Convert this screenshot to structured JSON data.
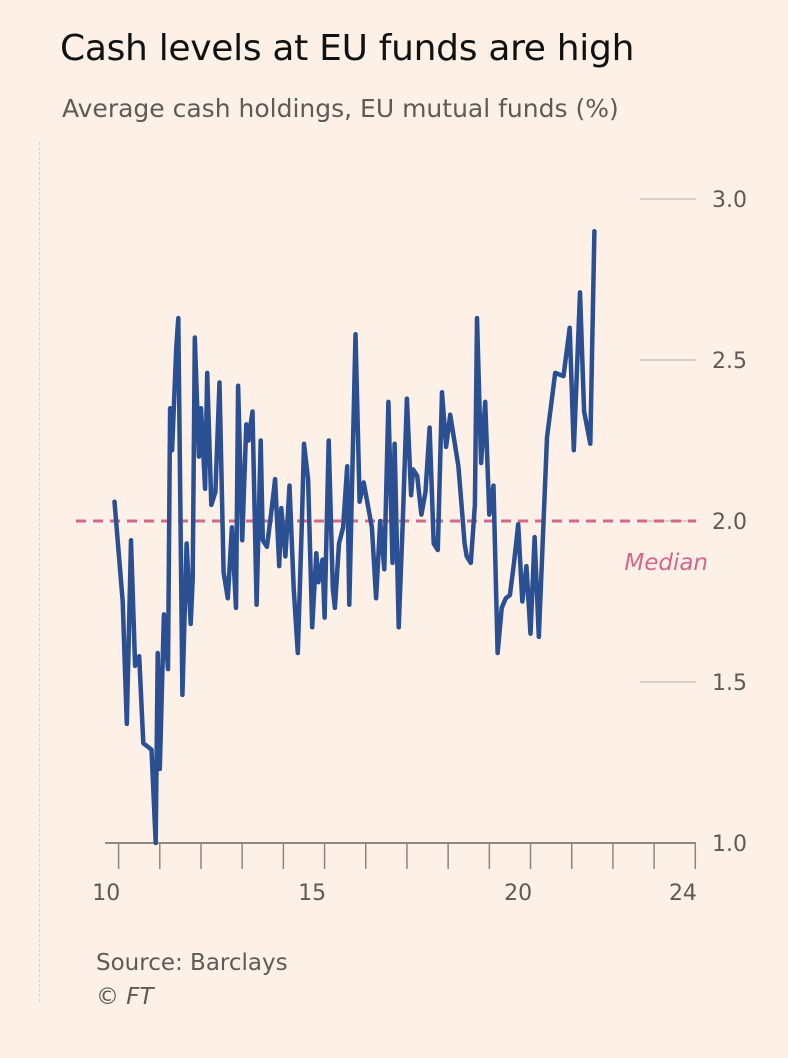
{
  "title": "Cash levels at EU funds are high",
  "subtitle": "Average cash holdings, EU mutual funds (%)",
  "source": "Source: Barclays",
  "copyright": "© FT",
  "colors": {
    "line": "#2a4f93",
    "median": "#d4678e",
    "background": "#fdf0e6",
    "grid": "#cbc6c2"
  },
  "chart_data": {
    "type": "line",
    "title": "Cash levels at EU funds are high",
    "subtitle": "Average cash holdings, EU mutual funds (%)",
    "xlim": [
      9.97,
      24.05
    ],
    "ylim": [
      1.0,
      3.0
    ],
    "x_ticks": [
      10,
      15,
      20,
      24
    ],
    "y_ticks": [
      "1.0",
      "1.5",
      "2.0",
      "2.5",
      "3.0"
    ],
    "grid": "y-right-stubs",
    "median": {
      "value": 2.0,
      "label": "Median"
    },
    "series": [
      {
        "values": [
          [
            10.2,
            2.06
          ],
          [
            10.4,
            1.75
          ],
          [
            10.5,
            1.37
          ],
          [
            10.6,
            1.94
          ],
          [
            10.7,
            1.55
          ],
          [
            10.8,
            1.58
          ],
          [
            10.9,
            1.31
          ],
          [
            11.1,
            1.29
          ],
          [
            11.2,
            1.0
          ],
          [
            11.25,
            1.59
          ],
          [
            11.3,
            1.23
          ],
          [
            11.4,
            1.71
          ],
          [
            11.5,
            1.54
          ],
          [
            11.55,
            2.35
          ],
          [
            11.6,
            2.22
          ],
          [
            11.7,
            2.54
          ],
          [
            11.75,
            2.63
          ],
          [
            11.85,
            1.46
          ],
          [
            11.95,
            1.93
          ],
          [
            12.05,
            1.68
          ],
          [
            12.1,
            1.82
          ],
          [
            12.15,
            2.57
          ],
          [
            12.25,
            2.2
          ],
          [
            12.3,
            2.35
          ],
          [
            12.4,
            2.1
          ],
          [
            12.45,
            2.46
          ],
          [
            12.55,
            2.05
          ],
          [
            12.65,
            2.09
          ],
          [
            12.75,
            2.43
          ],
          [
            12.85,
            1.84
          ],
          [
            12.95,
            1.76
          ],
          [
            13.05,
            1.98
          ],
          [
            13.15,
            1.73
          ],
          [
            13.2,
            2.42
          ],
          [
            13.3,
            1.94
          ],
          [
            13.4,
            2.3
          ],
          [
            13.45,
            2.25
          ],
          [
            13.55,
            2.34
          ],
          [
            13.65,
            1.74
          ],
          [
            13.75,
            2.25
          ],
          [
            13.8,
            1.94
          ],
          [
            13.9,
            1.92
          ],
          [
            14.0,
            2.02
          ],
          [
            14.1,
            2.13
          ],
          [
            14.2,
            1.86
          ],
          [
            14.25,
            2.04
          ],
          [
            14.35,
            1.89
          ],
          [
            14.45,
            2.11
          ],
          [
            14.55,
            1.79
          ],
          [
            14.65,
            1.59
          ],
          [
            14.75,
            2.0
          ],
          [
            14.8,
            2.24
          ],
          [
            14.9,
            2.13
          ],
          [
            15.0,
            1.67
          ],
          [
            15.1,
            1.9
          ],
          [
            15.15,
            1.81
          ],
          [
            15.25,
            1.88
          ],
          [
            15.3,
            1.7
          ],
          [
            15.4,
            2.25
          ],
          [
            15.5,
            1.79
          ],
          [
            15.55,
            1.73
          ],
          [
            15.65,
            1.93
          ],
          [
            15.75,
            1.98
          ],
          [
            15.85,
            2.17
          ],
          [
            15.9,
            1.74
          ],
          [
            16.05,
            2.58
          ],
          [
            16.15,
            2.06
          ],
          [
            16.25,
            2.12
          ],
          [
            16.35,
            2.05
          ],
          [
            16.45,
            1.98
          ],
          [
            16.55,
            1.76
          ],
          [
            16.65,
            2.0
          ],
          [
            16.75,
            1.85
          ],
          [
            16.85,
            2.37
          ],
          [
            16.95,
            1.87
          ],
          [
            17.0,
            2.24
          ],
          [
            17.1,
            1.67
          ],
          [
            17.2,
            2.0
          ],
          [
            17.3,
            2.38
          ],
          [
            17.4,
            2.08
          ],
          [
            17.45,
            2.16
          ],
          [
            17.55,
            2.14
          ],
          [
            17.65,
            2.02
          ],
          [
            17.75,
            2.09
          ],
          [
            17.85,
            2.29
          ],
          [
            17.95,
            1.93
          ],
          [
            18.05,
            1.91
          ],
          [
            18.15,
            2.4
          ],
          [
            18.25,
            2.23
          ],
          [
            18.35,
            2.33
          ],
          [
            18.45,
            2.25
          ],
          [
            18.55,
            2.17
          ],
          [
            18.6,
            2.09
          ],
          [
            18.7,
            1.93
          ],
          [
            18.75,
            1.89
          ],
          [
            18.85,
            1.87
          ],
          [
            18.95,
            2.05
          ],
          [
            19.0,
            2.63
          ],
          [
            19.1,
            2.18
          ],
          [
            19.2,
            2.37
          ],
          [
            19.3,
            2.02
          ],
          [
            19.4,
            2.11
          ],
          [
            19.5,
            1.59
          ],
          [
            19.6,
            1.73
          ],
          [
            19.7,
            1.76
          ],
          [
            19.8,
            1.77
          ],
          [
            19.9,
            1.87
          ],
          [
            20.0,
            1.99
          ],
          [
            20.1,
            1.75
          ],
          [
            20.2,
            1.86
          ],
          [
            20.3,
            1.65
          ],
          [
            20.4,
            1.95
          ],
          [
            20.5,
            1.64
          ],
          [
            20.7,
            2.26
          ],
          [
            20.9,
            2.46
          ],
          [
            21.1,
            2.45
          ],
          [
            21.25,
            2.6
          ],
          [
            21.35,
            2.22
          ],
          [
            21.5,
            2.71
          ],
          [
            21.6,
            2.34
          ],
          [
            21.75,
            2.24
          ],
          [
            21.85,
            2.9
          ]
        ]
      }
    ]
  }
}
